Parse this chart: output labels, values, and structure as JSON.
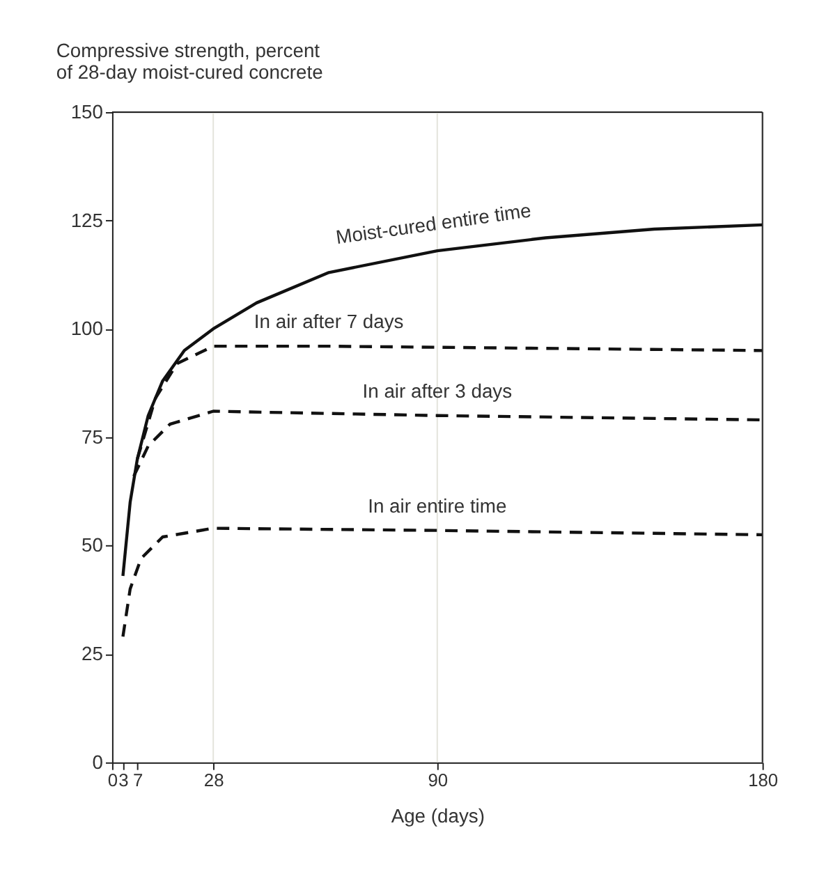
{
  "chart_data": {
    "type": "line",
    "ylabel": "Compressive strength, percent\nof 28-day moist-cured concrete",
    "xlabel": "Age (days)",
    "xlim": [
      0,
      180
    ],
    "xticks": [
      0,
      3,
      7,
      28,
      90,
      180
    ],
    "ylim": [
      0,
      150
    ],
    "yticks": [
      0,
      25,
      50,
      75,
      100,
      125,
      150
    ],
    "grid": false,
    "marker": "none",
    "ref_lines": [
      {
        "axis": "x",
        "value": 28,
        "color": "#e4e4dc"
      },
      {
        "axis": "x",
        "value": 90,
        "color": "#e4e4dc"
      }
    ],
    "annotations": [
      "Moist-cured entire time",
      "In air after 7 days",
      "In air after 3 days",
      "In air entire time"
    ],
    "series": [
      {
        "color": "#111111",
        "line_style": "solid",
        "x": [
          3,
          5,
          7,
          10,
          14,
          20,
          28,
          40,
          60,
          90,
          120,
          150,
          180
        ],
        "values": [
          43,
          60,
          70,
          80,
          88,
          95,
          100,
          106,
          113,
          118,
          121,
          123,
          124
        ]
      },
      {
        "color": "#111111",
        "line_style": "dashed",
        "x": [
          7,
          12,
          18,
          28,
          60,
          120,
          180
        ],
        "values": [
          70,
          84,
          92,
          96,
          96,
          95.5,
          95
        ]
      },
      {
        "color": "#111111",
        "line_style": "dashed",
        "x": [
          6,
          10,
          16,
          28,
          90,
          180
        ],
        "values": [
          66,
          73,
          78,
          81,
          80,
          79
        ]
      },
      {
        "color": "#111111",
        "line_style": "dashed",
        "x": [
          3,
          5,
          8,
          14,
          28,
          90,
          180
        ],
        "values": [
          29,
          40,
          47,
          52,
          54,
          53.5,
          52.5
        ]
      }
    ]
  }
}
